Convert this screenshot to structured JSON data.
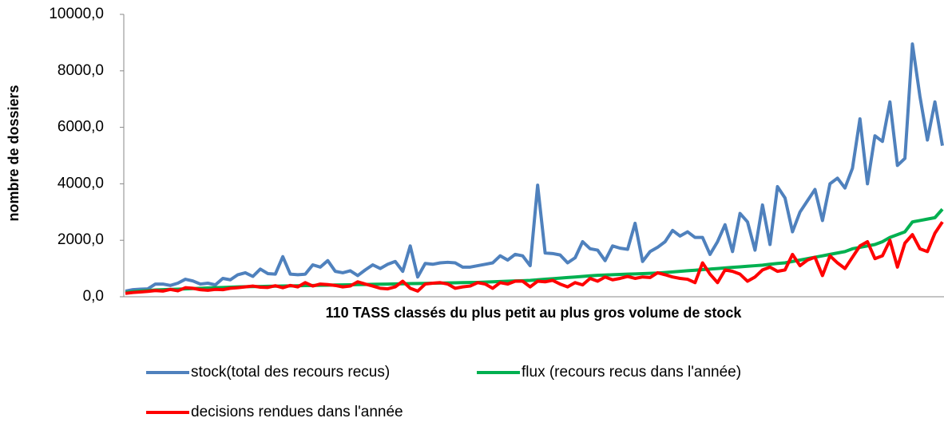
{
  "chart_data": {
    "type": "line",
    "xlabel": "110 TASS classés du plus petit au plus gros volume de stock",
    "ylabel": "nombre de dossiers",
    "categories": [
      null,
      null,
      null,
      null,
      null,
      null,
      null,
      null,
      null,
      null,
      null,
      null,
      null,
      null,
      null,
      null,
      null,
      null,
      null,
      null,
      null,
      null,
      null,
      null,
      null,
      null,
      null,
      null,
      null,
      null,
      null,
      null,
      null,
      null,
      null,
      null,
      null,
      null,
      null,
      null,
      null,
      null,
      null,
      null,
      null,
      null,
      null,
      null,
      null,
      null,
      null,
      null,
      null,
      null,
      null,
      null,
      null,
      null,
      null,
      null,
      null,
      null,
      null,
      null,
      null,
      null,
      null,
      null,
      null,
      null,
      null,
      null,
      null,
      null,
      null,
      null,
      null,
      null,
      null,
      null,
      null,
      null,
      null,
      null,
      null,
      null,
      null,
      null,
      null,
      null,
      null,
      null,
      null,
      null,
      null,
      null,
      null,
      null,
      null,
      null,
      null,
      null,
      null,
      null,
      null,
      null,
      null,
      null,
      null,
      null
    ],
    "ylim": [
      0,
      10000
    ],
    "yticks": [
      {
        "value": 0,
        "label": "0,0"
      },
      {
        "value": 2000,
        "label": "2000,0"
      },
      {
        "value": 4000,
        "label": "4000,0"
      },
      {
        "value": 6000,
        "label": "6000,0"
      },
      {
        "value": 8000,
        "label": "8000,0"
      },
      {
        "value": 10000,
        "label": "10000,0"
      }
    ],
    "grid": false,
    "legend": "bottom",
    "series": [
      {
        "name": "stock(total des recours recus)",
        "color": "#4f81bd",
        "values": [
          200,
          250,
          270,
          280,
          450,
          450,
          400,
          480,
          620,
          560,
          450,
          480,
          420,
          650,
          600,
          780,
          850,
          720,
          980,
          820,
          800,
          1420,
          800,
          780,
          800,
          1130,
          1050,
          1280,
          900,
          850,
          920,
          750,
          950,
          1130,
          1000,
          1150,
          1250,
          900,
          1800,
          700,
          1180,
          1150,
          1200,
          1220,
          1200,
          1050,
          1050,
          1100,
          1150,
          1200,
          1450,
          1300,
          1500,
          1450,
          1100,
          3950,
          1550,
          1530,
          1480,
          1200,
          1380,
          1950,
          1700,
          1650,
          1280,
          1800,
          1720,
          1680,
          2600,
          1250,
          1600,
          1750,
          1950,
          2350,
          2150,
          2300,
          2100,
          2100,
          1500,
          1950,
          2550,
          1600,
          2950,
          2650,
          1650,
          3250,
          1850,
          3900,
          3500,
          2300,
          3000,
          3400,
          3800,
          2700,
          4000,
          4200,
          3850,
          4550,
          6300,
          4000,
          5700,
          5500,
          6900,
          4650,
          4900,
          8950,
          7100,
          5550,
          6900,
          5350
        ]
      },
      {
        "name": "flux (recours recus dans l'année)",
        "color": "#00b050",
        "values": [
          150,
          180,
          200,
          220,
          240,
          250,
          260,
          270,
          280,
          290,
          300,
          310,
          320,
          330,
          340,
          350,
          355,
          360,
          365,
          370,
          375,
          380,
          385,
          390,
          395,
          400,
          405,
          410,
          415,
          420,
          425,
          430,
          435,
          440,
          445,
          450,
          455,
          460,
          465,
          470,
          475,
          480,
          485,
          490,
          495,
          500,
          505,
          510,
          520,
          530,
          540,
          550,
          560,
          570,
          580,
          600,
          620,
          640,
          660,
          680,
          700,
          720,
          740,
          760,
          770,
          780,
          790,
          800,
          810,
          820,
          830,
          840,
          860,
          880,
          900,
          920,
          940,
          960,
          980,
          1000,
          1020,
          1040,
          1060,
          1080,
          1100,
          1120,
          1150,
          1180,
          1200,
          1250,
          1300,
          1350,
          1400,
          1450,
          1500,
          1550,
          1600,
          1700,
          1750,
          1800,
          1850,
          1950,
          2100,
          2200,
          2300,
          2650,
          2700,
          2750,
          2800,
          3100
        ]
      },
      {
        "name": "decisions rendues dans l'année",
        "color": "#ff0000",
        "values": [
          120,
          150,
          170,
          190,
          220,
          200,
          260,
          210,
          320,
          300,
          250,
          230,
          260,
          250,
          300,
          320,
          350,
          380,
          340,
          330,
          390,
          320,
          400,
          350,
          500,
          380,
          450,
          430,
          400,
          350,
          380,
          530,
          450,
          380,
          300,
          280,
          350,
          550,
          300,
          200,
          450,
          480,
          500,
          450,
          300,
          350,
          380,
          500,
          450,
          300,
          500,
          450,
          550,
          550,
          350,
          550,
          530,
          580,
          450,
          350,
          500,
          420,
          650,
          550,
          700,
          600,
          650,
          720,
          650,
          700,
          680,
          850,
          780,
          700,
          650,
          620,
          500,
          1200,
          800,
          500,
          950,
          900,
          800,
          550,
          700,
          950,
          1050,
          900,
          950,
          1500,
          1100,
          1300,
          1400,
          750,
          1450,
          1200,
          1000,
          1400,
          1800,
          1950,
          1350,
          1450,
          2000,
          1050,
          1900,
          2200,
          1700,
          1600,
          2250,
          2650
        ]
      }
    ]
  }
}
